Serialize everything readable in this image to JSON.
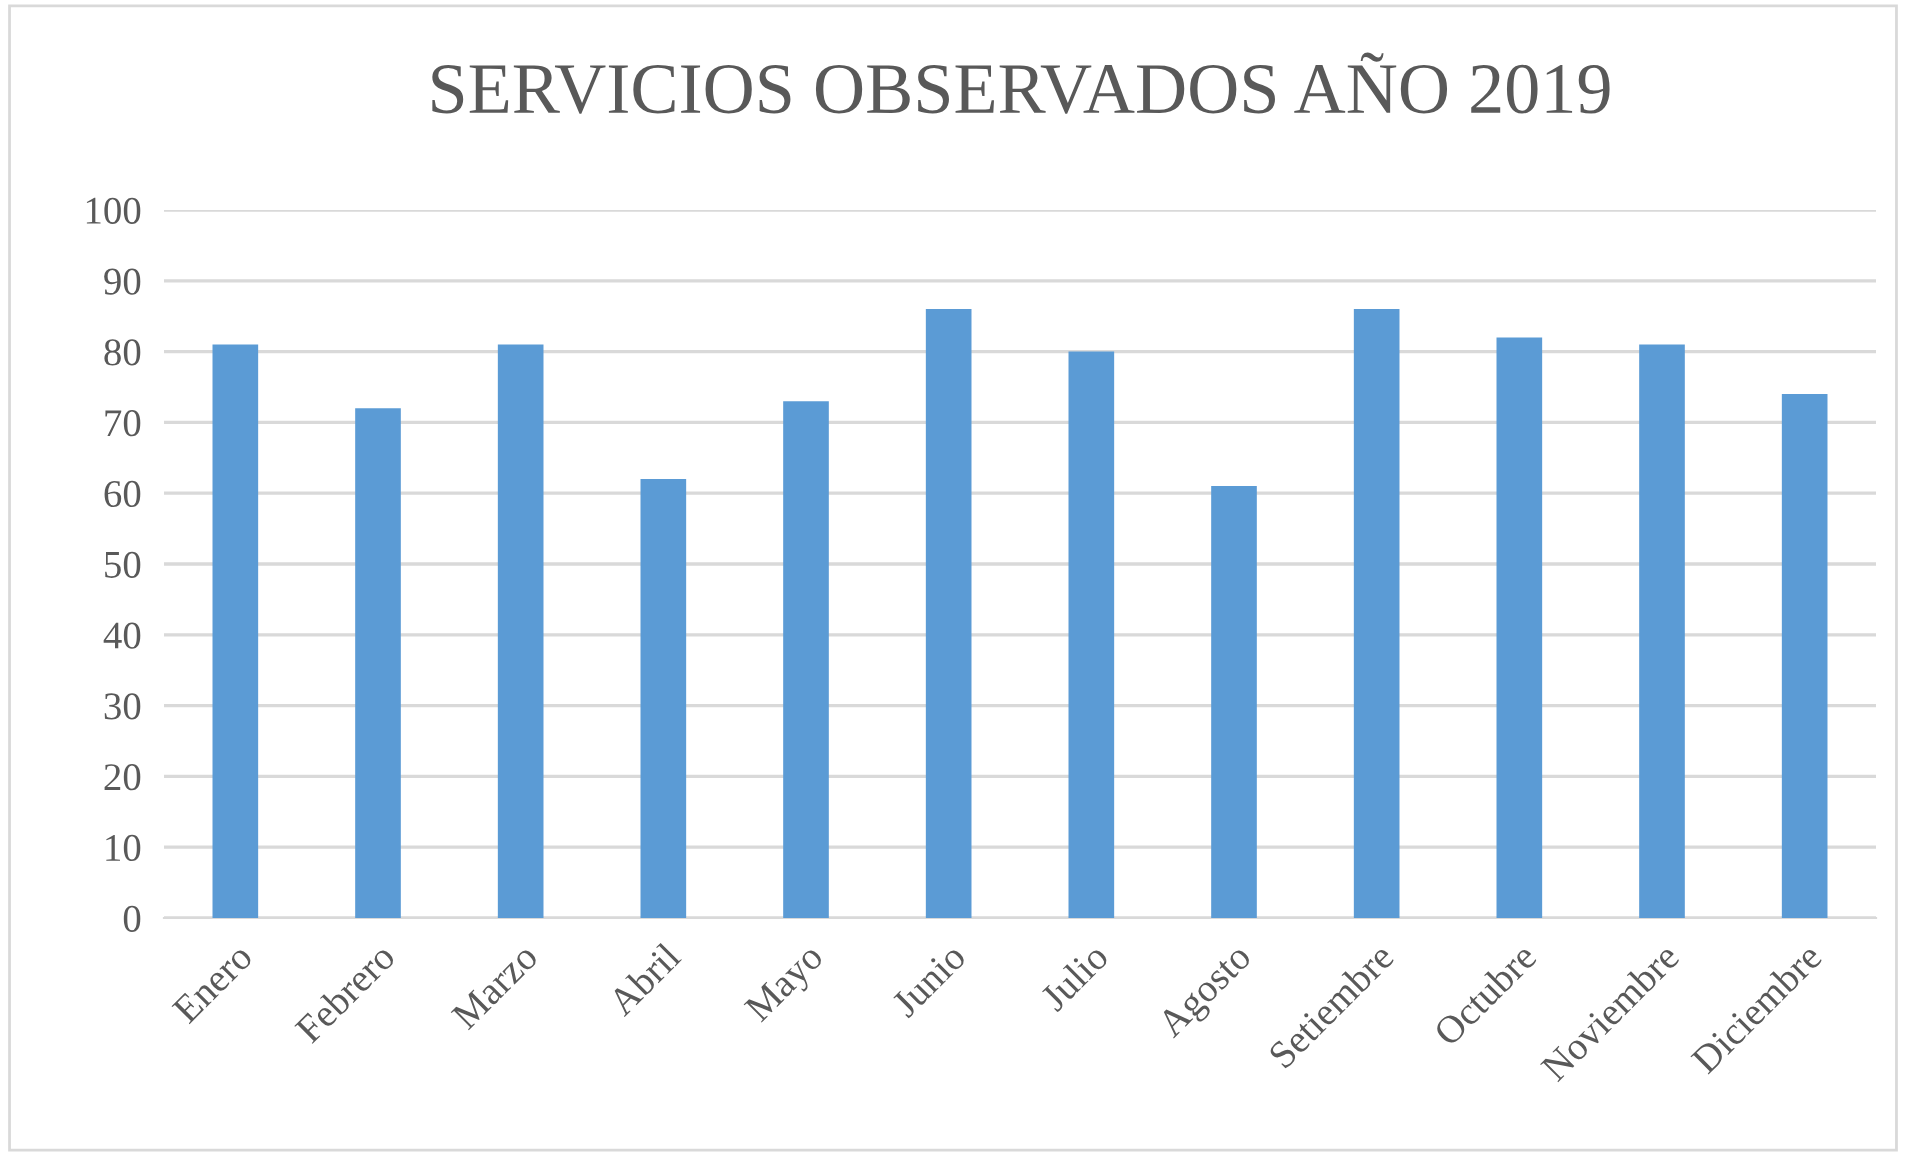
{
  "chart_data": {
    "type": "bar",
    "title": "SERVICIOS OBSERVADOS AÑO 2019",
    "categories": [
      "Enero",
      "Febrero",
      "Marzo",
      "Abril",
      "Mayo",
      "Junio",
      "Julio",
      "Agosto",
      "Setiembre",
      "Octubre",
      "Noviembre",
      "Diciembre"
    ],
    "values": [
      81,
      72,
      81,
      62,
      73,
      86,
      80,
      61,
      86,
      82,
      81,
      74
    ],
    "color": "#5b9bd5",
    "ylim": [
      0,
      100
    ],
    "yticks": [
      0,
      10,
      20,
      30,
      40,
      50,
      60,
      70,
      80,
      90,
      100
    ],
    "grid": "y"
  }
}
